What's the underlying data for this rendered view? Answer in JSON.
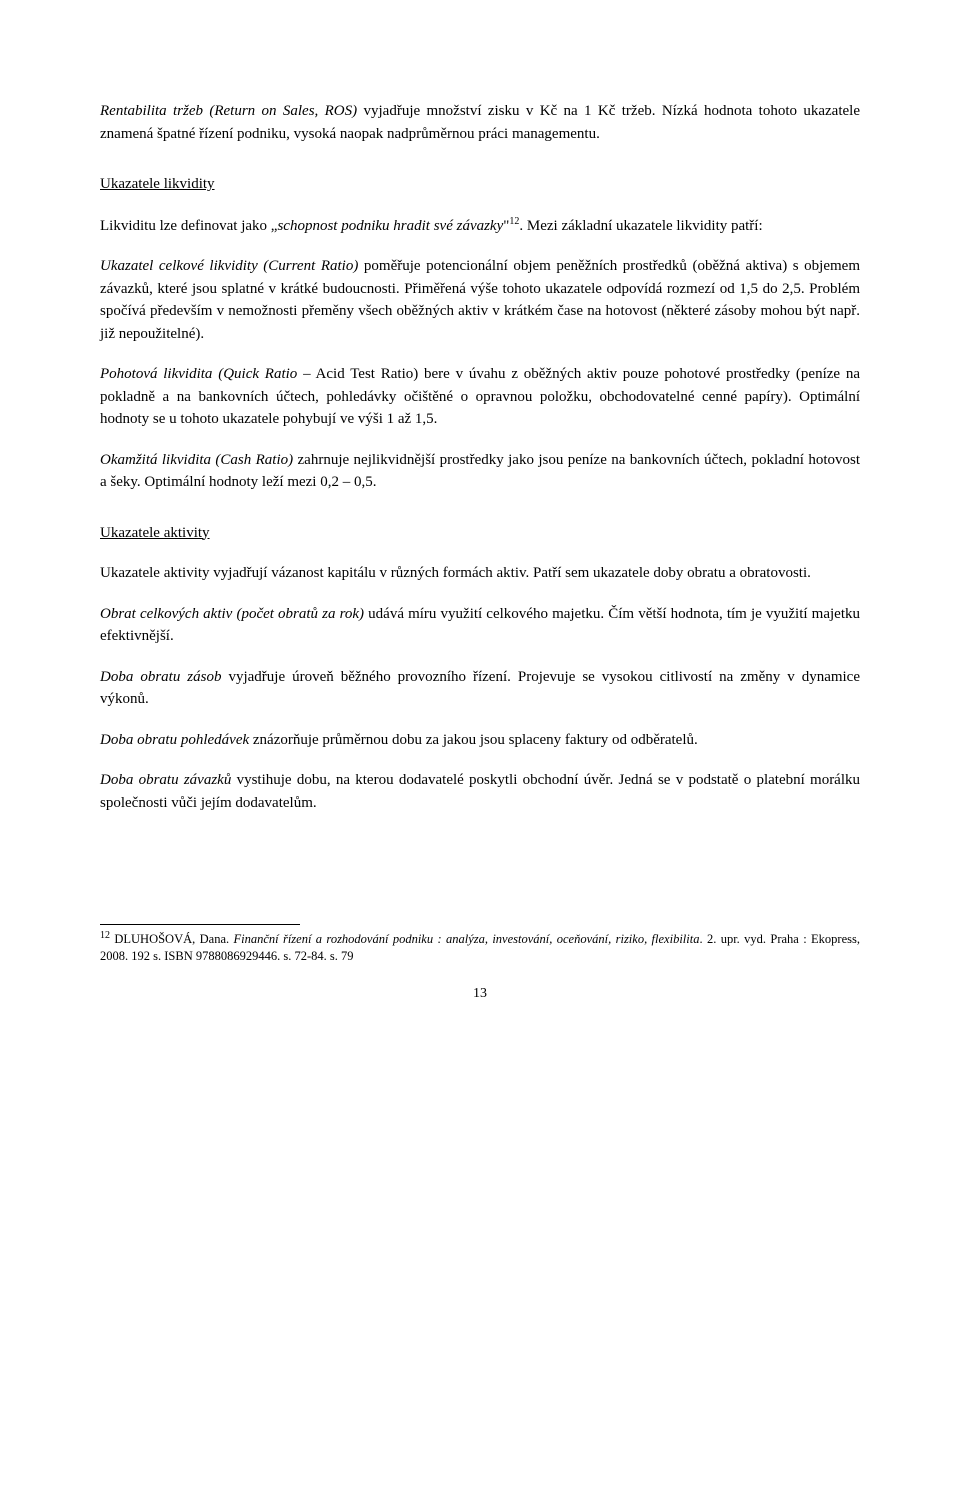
{
  "para1": {
    "italicLead": "Rentabilita tržeb (Return on Sales, ROS)",
    "rest": " vyjadřuje množství zisku v Kč na 1 Kč tržeb. Nízká hodnota tohoto ukazatele znamená špatné řízení podniku, vysoká naopak nadprůměrnou práci managementu."
  },
  "heading1": "Ukazatele likvidity",
  "para2": {
    "pre": "Likviditu lze definovat jako „",
    "quoteItalic": "schopnost podniku hradit své závazky",
    "postQuote": "\"",
    "sup": "12",
    "rest": ". Mezi základní ukazatele likvidity patří:"
  },
  "para3": {
    "italicLead": "Ukazatel celkové likvidity (Current Ratio)",
    "rest": " poměřuje potencionální objem peněžních prostředků (oběžná aktiva) s objemem závazků, které jsou splatné v krátké budoucnosti. Přiměřená výše tohoto ukazatele odpovídá rozmezí od 1,5 do 2,5. Problém spočívá především v nemožnosti přeměny všech oběžných aktiv v krátkém čase na hotovost (některé zásoby mohou být např. již nepoužitelné)."
  },
  "para4": {
    "italicLead": "Pohotová likvidita (Quick Ratio –",
    "restAfterItalic": " Acid Test Ratio) bere v úvahu z oběžných aktiv pouze pohotové prostředky (peníze na pokladně a na bankovních účtech, pohledávky  očištěné o opravnou položku, obchodovatelné cenné papíry). Optimální hodnoty se u tohoto ukazatele pohybují ve výši 1 až 1,5."
  },
  "para5": {
    "italicLead": "Okamžitá likvidita (Cash Ratio)",
    "rest": " zahrnuje nejlikvidnější prostředky jako jsou peníze na bankovních účtech, pokladní hotovost a šeky. Optimální hodnoty leží mezi 0,2 – 0,5."
  },
  "heading2": "Ukazatele aktivity",
  "para6": "Ukazatele aktivity vyjadřují vázanost kapitálu v různých formách aktiv. Patří sem ukazatele doby obratu a obratovosti.",
  "para7": {
    "italicLead": "Obrat celkových aktiv (počet obratů za rok)",
    "rest": " udává míru využití celkového majetku. Čím větší hodnota, tím je využití majetku efektivnější."
  },
  "para8": {
    "italicLead": "Doba obratu zásob",
    "rest": " vyjadřuje úroveň běžného provozního řízení. Projevuje se vysokou citlivostí na změny v dynamice výkonů."
  },
  "para9": {
    "italicLead": "Doba obratu pohledávek",
    "rest": " znázorňuje průměrnou dobu za jakou jsou splaceny faktury od odběratelů."
  },
  "para10": {
    "italicLead": "Doba obratu závazků",
    "rest": " vystihuje dobu, na kterou dodavatelé poskytli obchodní úvěr. Jedná se v podstatě o platební morálku společnosti vůči jejím dodavatelům."
  },
  "footnote": {
    "sup": "12",
    "author": " DLUHOŠOVÁ, Dana. ",
    "title": "Finanční řízení a rozhodování podniku : analýza, investování, oceňování, riziko, flexibilita",
    "tail": ". 2. upr. vyd. Praha : Ekopress, 2008. 192 s. ISBN 9788086929446. s. 72-84. s. 79"
  },
  "pageNumber": "13"
}
